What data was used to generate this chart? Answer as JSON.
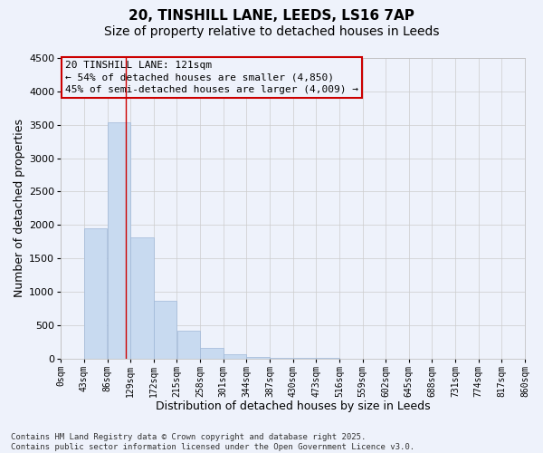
{
  "title_line1": "20, TINSHILL LANE, LEEDS, LS16 7AP",
  "title_line2": "Size of property relative to detached houses in Leeds",
  "xlabel": "Distribution of detached houses by size in Leeds",
  "ylabel": "Number of detached properties",
  "annotation_title": "20 TINSHILL LANE: 121sqm",
  "annotation_line1": "← 54% of detached houses are smaller (4,850)",
  "annotation_line2": "45% of semi-detached houses are larger (4,009) →",
  "property_size": 121,
  "bin_width": 43,
  "bin_starts": [
    0,
    43,
    86,
    129,
    172,
    215,
    258,
    301,
    344,
    387,
    430,
    473,
    516,
    559,
    602,
    645,
    688,
    731,
    774,
    817
  ],
  "bin_counts": [
    0,
    1950,
    3530,
    1820,
    860,
    420,
    155,
    65,
    25,
    10,
    5,
    2,
    1,
    0,
    0,
    0,
    0,
    0,
    0,
    0
  ],
  "bar_color": "#c8daf0",
  "bar_edge_color": "#a0b8d8",
  "line_color": "#cc0000",
  "annotation_box_color": "#cc0000",
  "grid_color": "#cccccc",
  "bg_color": "#eef2fb",
  "ylim": [
    0,
    4500
  ],
  "xlim": [
    0,
    860
  ],
  "footer_line1": "Contains HM Land Registry data © Crown copyright and database right 2025.",
  "footer_line2": "Contains public sector information licensed under the Open Government Licence v3.0.",
  "title_fontsize": 11,
  "subtitle_fontsize": 10,
  "axis_label_fontsize": 9,
  "tick_fontsize": 7,
  "annotation_fontsize": 8,
  "footer_fontsize": 6.5,
  "ylabel_fontsize": 9
}
